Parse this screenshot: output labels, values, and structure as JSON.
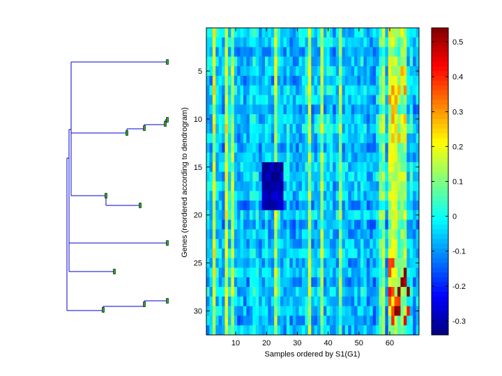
{
  "chart_data": [
    {
      "type": "dendrogram",
      "orientation": "left-to-right",
      "line_color": "#0000cc",
      "leaf_marker_color": "#22aa22",
      "leaves": 9
    },
    {
      "type": "heatmap",
      "title": "",
      "xlabel": "Samples ordered by S1(G1)",
      "ylabel": "Genes (reordered according to dendrogram)",
      "n_cols": 69,
      "n_rows": 32,
      "x_ticks": [
        10,
        20,
        30,
        40,
        50,
        60
      ],
      "y_ticks": [
        5,
        10,
        15,
        20,
        25,
        30
      ],
      "x_range": [
        0.5,
        69.5
      ],
      "y_range": [
        0.5,
        32.5
      ],
      "colormap": "jet",
      "notes": "Cell values estimated from color: mostly blue/cyan near -0.1 to 0; warm (yellow/orange/red) columns near samples 7, 23, 38, 44, 57-65; dark blue band in rows 15-19 around samples 19-25; row 15 rows and columns ~60-66 contain dark red values.",
      "cold_block": {
        "rows": [
          15,
          19
        ],
        "cols": [
          19,
          25
        ],
        "value": -0.3
      },
      "warm_columns": [
        3,
        7,
        9,
        23,
        34,
        38,
        44,
        57,
        58,
        60,
        61,
        62,
        63,
        64,
        65
      ]
    },
    {
      "type": "colorbar",
      "colormap": "jet",
      "range": [
        -0.34,
        0.54
      ],
      "ticks": [
        0.5,
        0.4,
        0.3,
        0.2,
        0.1,
        0,
        -0.1,
        -0.2,
        -0.3
      ],
      "tick_labels": [
        "0.5",
        "0.4",
        "0.3",
        "0.2",
        "0.1",
        "0",
        "-0.1",
        "-0.2",
        "-0.3"
      ]
    }
  ]
}
